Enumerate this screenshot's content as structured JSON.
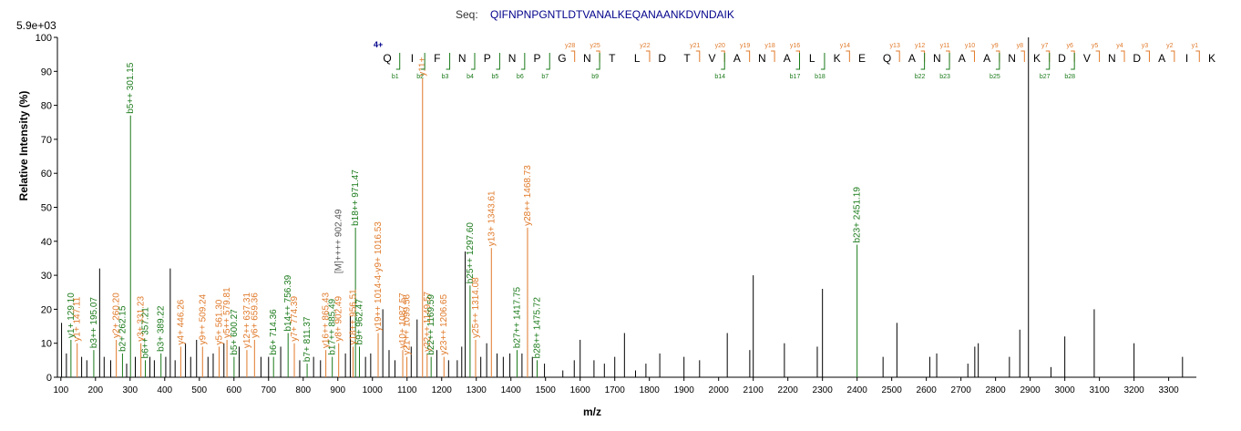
{
  "chart_data": {
    "type": "bar",
    "sequence_prefix": "Seq:",
    "sequence": "QIFNPNPGNTLDTVANALKEQANAANKDVNDAIK",
    "max_intensity_label": "5.9e+03",
    "charge_label": "4+",
    "xlabel": "m/z",
    "ylabel": "Relative   Intensity (%)",
    "xlim": [
      90,
      3380
    ],
    "ylim": [
      0,
      100
    ],
    "xticks": [
      100,
      200,
      300,
      400,
      500,
      600,
      700,
      800,
      900,
      1000,
      1100,
      1200,
      1300,
      1400,
      1500,
      1600,
      1700,
      1800,
      1900,
      2000,
      2100,
      2200,
      2300,
      2400,
      2500,
      2600,
      2700,
      2800,
      2900,
      3000,
      3100,
      3200,
      3300
    ],
    "yticks": [
      0,
      10,
      20,
      30,
      40,
      50,
      60,
      70,
      80,
      90,
      100
    ],
    "colors": {
      "b": "#1a7a1a",
      "y": "#e07a2a",
      "other": "#555555",
      "peak": "#000000",
      "seq": "#00008b",
      "charge": "#00008b"
    },
    "y_ion_labels": [
      "y28",
      "y25",
      "y22",
      "y21",
      "y20",
      "y19",
      "y18",
      "y16",
      "y14",
      "y13",
      "y12",
      "y11",
      "y10",
      "y9",
      "y8",
      "y7",
      "y6",
      "y5",
      "y4",
      "y3",
      "y2",
      "y1"
    ],
    "y_ion_marker_residues": [
      7,
      8,
      10,
      12,
      13,
      14,
      15,
      16,
      18,
      20,
      21,
      22,
      23,
      24,
      25,
      26,
      27,
      28,
      29,
      30,
      31,
      32
    ],
    "b_ion_labels": [
      "b1",
      "b2",
      "b3",
      "b4",
      "b5",
      "b6",
      "b7",
      "b9",
      "b14",
      "b17",
      "b18",
      "b22",
      "b23",
      "b25",
      "b27",
      "b28"
    ],
    "b_ion_marker_residues": [
      0,
      1,
      2,
      3,
      4,
      5,
      6,
      8,
      13,
      16,
      17,
      21,
      22,
      24,
      26,
      27
    ],
    "peaks": [
      {
        "mz": 102,
        "i": 16
      },
      {
        "mz": 116,
        "i": 7
      },
      {
        "mz": 129.1,
        "i": 11
      },
      {
        "mz": 147.11,
        "i": 10
      },
      {
        "mz": 160,
        "i": 6
      },
      {
        "mz": 175,
        "i": 5
      },
      {
        "mz": 195.07,
        "i": 8
      },
      {
        "mz": 212,
        "i": 32
      },
      {
        "mz": 225,
        "i": 6
      },
      {
        "mz": 244,
        "i": 5
      },
      {
        "mz": 260.2,
        "i": 11
      },
      {
        "mz": 278,
        "i": 7
      },
      {
        "mz": 290,
        "i": 4
      },
      {
        "mz": 301.15,
        "i": 77
      },
      {
        "mz": 315,
        "i": 6
      },
      {
        "mz": 331.23,
        "i": 10
      },
      {
        "mz": 344,
        "i": 5
      },
      {
        "mz": 357.21,
        "i": 6
      },
      {
        "mz": 370,
        "i": 5
      },
      {
        "mz": 389.22,
        "i": 7
      },
      {
        "mz": 403,
        "i": 6
      },
      {
        "mz": 416,
        "i": 32
      },
      {
        "mz": 430,
        "i": 5
      },
      {
        "mz": 446.26,
        "i": 9
      },
      {
        "mz": 460,
        "i": 10
      },
      {
        "mz": 475,
        "i": 6
      },
      {
        "mz": 492,
        "i": 11
      },
      {
        "mz": 509.24,
        "i": 9
      },
      {
        "mz": 525,
        "i": 6
      },
      {
        "mz": 540,
        "i": 7
      },
      {
        "mz": 557,
        "i": 9
      },
      {
        "mz": 571,
        "i": 10
      },
      {
        "mz": 579.81,
        "i": 11
      },
      {
        "mz": 600.27,
        "i": 6
      },
      {
        "mz": 615,
        "i": 9
      },
      {
        "mz": 637.31,
        "i": 8
      },
      {
        "mz": 659.36,
        "i": 11
      },
      {
        "mz": 678,
        "i": 6
      },
      {
        "mz": 700,
        "i": 6
      },
      {
        "mz": 714.36,
        "i": 6
      },
      {
        "mz": 735,
        "i": 9
      },
      {
        "mz": 756.39,
        "i": 13
      },
      {
        "mz": 774.39,
        "i": 10
      },
      {
        "mz": 790,
        "i": 5
      },
      {
        "mz": 811.37,
        "i": 4
      },
      {
        "mz": 830,
        "i": 6
      },
      {
        "mz": 850,
        "i": 5
      },
      {
        "mz": 865.43,
        "i": 8
      },
      {
        "mz": 884,
        "i": 6
      },
      {
        "mz": 902.49,
        "i": 10
      },
      {
        "mz": 922,
        "i": 7
      },
      {
        "mz": 936,
        "i": 18
      },
      {
        "mz": 944,
        "i": 9
      },
      {
        "mz": 951,
        "i": 44
      },
      {
        "mz": 962.47,
        "i": 9
      },
      {
        "mz": 980,
        "i": 6
      },
      {
        "mz": 995,
        "i": 7
      },
      {
        "mz": 1016.53,
        "i": 13
      },
      {
        "mz": 1030,
        "i": 20
      },
      {
        "mz": 1048,
        "i": 8
      },
      {
        "mz": 1065,
        "i": 5
      },
      {
        "mz": 1087.57,
        "i": 8
      },
      {
        "mz": 1099.56,
        "i": 6
      },
      {
        "mz": 1112,
        "i": 9
      },
      {
        "mz": 1129,
        "i": 17
      },
      {
        "mz": 1144.8,
        "i": 88
      },
      {
        "mz": 1158,
        "i": 7
      },
      {
        "mz": 1169.59,
        "i": 6
      },
      {
        "mz": 1186,
        "i": 8
      },
      {
        "mz": 1206.65,
        "i": 6
      },
      {
        "mz": 1220,
        "i": 5
      },
      {
        "mz": 1245,
        "i": 5
      },
      {
        "mz": 1258,
        "i": 9
      },
      {
        "mz": 1268,
        "i": 37
      },
      {
        "mz": 1282,
        "i": 27
      },
      {
        "mz": 1298,
        "i": 11
      },
      {
        "mz": 1313,
        "i": 6
      },
      {
        "mz": 1330,
        "i": 10
      },
      {
        "mz": 1343.61,
        "i": 38
      },
      {
        "mz": 1360,
        "i": 7
      },
      {
        "mz": 1378,
        "i": 6
      },
      {
        "mz": 1397,
        "i": 7
      },
      {
        "mz": 1417.75,
        "i": 8
      },
      {
        "mz": 1432,
        "i": 7
      },
      {
        "mz": 1448,
        "i": 44
      },
      {
        "mz": 1462,
        "i": 6
      },
      {
        "mz": 1475.72,
        "i": 5
      },
      {
        "mz": 1497,
        "i": 4
      },
      {
        "mz": 1550,
        "i": 2
      },
      {
        "mz": 1583,
        "i": 5
      },
      {
        "mz": 1600,
        "i": 11
      },
      {
        "mz": 1640,
        "i": 5
      },
      {
        "mz": 1670,
        "i": 4
      },
      {
        "mz": 1700,
        "i": 6
      },
      {
        "mz": 1728,
        "i": 13
      },
      {
        "mz": 1760,
        "i": 2
      },
      {
        "mz": 1790,
        "i": 4
      },
      {
        "mz": 1830,
        "i": 7
      },
      {
        "mz": 1900,
        "i": 6
      },
      {
        "mz": 1945,
        "i": 5
      },
      {
        "mz": 2025,
        "i": 13
      },
      {
        "mz": 2090,
        "i": 8
      },
      {
        "mz": 2100,
        "i": 30
      },
      {
        "mz": 2190,
        "i": 10
      },
      {
        "mz": 2285,
        "i": 9
      },
      {
        "mz": 2300,
        "i": 26
      },
      {
        "mz": 2400,
        "i": 39
      },
      {
        "mz": 2475,
        "i": 6
      },
      {
        "mz": 2515,
        "i": 16
      },
      {
        "mz": 2610,
        "i": 6
      },
      {
        "mz": 2630,
        "i": 7
      },
      {
        "mz": 2720,
        "i": 4
      },
      {
        "mz": 2740,
        "i": 9
      },
      {
        "mz": 2750,
        "i": 10
      },
      {
        "mz": 2840,
        "i": 6
      },
      {
        "mz": 2870,
        "i": 14
      },
      {
        "mz": 2895,
        "i": 100
      },
      {
        "mz": 2960,
        "i": 3
      },
      {
        "mz": 3000,
        "i": 12
      },
      {
        "mz": 3085,
        "i": 20
      },
      {
        "mz": 3200,
        "i": 10
      },
      {
        "mz": 3340,
        "i": 6
      }
    ],
    "annotations": [
      {
        "mz": 129.1,
        "i": 11,
        "label": "y1+ 129.10",
        "type": "b"
      },
      {
        "mz": 147.11,
        "i": 10,
        "label": "y1+ 147.11",
        "type": "y"
      },
      {
        "mz": 195.07,
        "i": 8,
        "label": "b3++ 195.07",
        "type": "b"
      },
      {
        "mz": 260.2,
        "i": 11,
        "label": "y2+ 260.20",
        "type": "y"
      },
      {
        "mz": 278,
        "i": 7,
        "label": "b2+ 262.15",
        "type": "b"
      },
      {
        "mz": 301.15,
        "i": 77,
        "label": "b5++ 301.15",
        "type": "b"
      },
      {
        "mz": 331.23,
        "i": 10,
        "label": "y3+ 331.23",
        "type": "y"
      },
      {
        "mz": 344,
        "i": 5,
        "label": "b6++ 357.21",
        "type": "b"
      },
      {
        "mz": 389.22,
        "i": 7,
        "label": "b3+ 389.22",
        "type": "b"
      },
      {
        "mz": 446.26,
        "i": 9,
        "label": "y4+ 446.26",
        "type": "y"
      },
      {
        "mz": 509.24,
        "i": 9,
        "label": "y9++ 509.24",
        "type": "y"
      },
      {
        "mz": 557,
        "i": 9,
        "label": "y5+ 561.30",
        "type": "y"
      },
      {
        "mz": 579.81,
        "i": 11,
        "label": "y5++ 579.81",
        "type": "y"
      },
      {
        "mz": 600.27,
        "i": 6,
        "label": "b5+ 600.27",
        "type": "b"
      },
      {
        "mz": 637.31,
        "i": 8,
        "label": "y12++ 637.31",
        "type": "y"
      },
      {
        "mz": 659.36,
        "i": 11,
        "label": "y6+ 659.36",
        "type": "y"
      },
      {
        "mz": 714.36,
        "i": 6,
        "label": "b6+ 714.36",
        "type": "b"
      },
      {
        "mz": 756.39,
        "i": 13,
        "label": "b14++ 756.39",
        "type": "b"
      },
      {
        "mz": 774.39,
        "i": 10,
        "label": "y7+ 774.39",
        "type": "y"
      },
      {
        "mz": 811.37,
        "i": 4,
        "label": "b7+ 811.37",
        "type": "b"
      },
      {
        "mz": 865.43,
        "i": 8,
        "label": "y16++ 865.43",
        "type": "y"
      },
      {
        "mz": 884,
        "i": 6,
        "label": "b17++ 885.49",
        "type": "b"
      },
      {
        "mz": 902.49,
        "i": 10,
        "label": "y8+ 902.49",
        "type": "y"
      },
      {
        "mz": 902.5,
        "i": 30,
        "label": "[M]++++ 902.49",
        "type": "other"
      },
      {
        "mz": 944,
        "i": 9,
        "label": "y18++ 956.51",
        "type": "y"
      },
      {
        "mz": 951,
        "i": 44,
        "label": "b18++ 971.47",
        "type": "b"
      },
      {
        "mz": 962.47,
        "i": 9,
        "label": "b9+ 962.47",
        "type": "b"
      },
      {
        "mz": 1016.53,
        "i": 13,
        "label": "y19++ 1014-4-y9+ 1016.53",
        "type": "y"
      },
      {
        "mz": 1087.57,
        "i": 8,
        "label": "y10+ 1087.57",
        "type": "y"
      },
      {
        "mz": 1099.56,
        "i": 6,
        "label": "y21++ 1099.56",
        "type": "y"
      },
      {
        "mz": 1144.8,
        "i": 88,
        "label": "y11+",
        "type": "y"
      },
      {
        "mz": 1158,
        "i": 7,
        "label": "y22++ 1149.57",
        "type": "y"
      },
      {
        "mz": 1169.59,
        "i": 6,
        "label": "b22++ 1169.59",
        "type": "b"
      },
      {
        "mz": 1206.65,
        "i": 6,
        "label": "y23++ 1206.65",
        "type": "y"
      },
      {
        "mz": 1282,
        "i": 27,
        "label": "b25++ 1297.60",
        "type": "b"
      },
      {
        "mz": 1298,
        "i": 11,
        "label": "y25++ 1314.08",
        "type": "y"
      },
      {
        "mz": 1343.61,
        "i": 38,
        "label": "y13+ 1343.61",
        "type": "y"
      },
      {
        "mz": 1417.75,
        "i": 8,
        "label": "b27++ 1417.75",
        "type": "b"
      },
      {
        "mz": 1448,
        "i": 44,
        "label": "y28++ 1468.73",
        "type": "y"
      },
      {
        "mz": 1475.72,
        "i": 5,
        "label": "b28++ 1475.72",
        "type": "b"
      },
      {
        "mz": 2400,
        "i": 39,
        "label": "b23+ 2451.19",
        "type": "b"
      }
    ]
  }
}
